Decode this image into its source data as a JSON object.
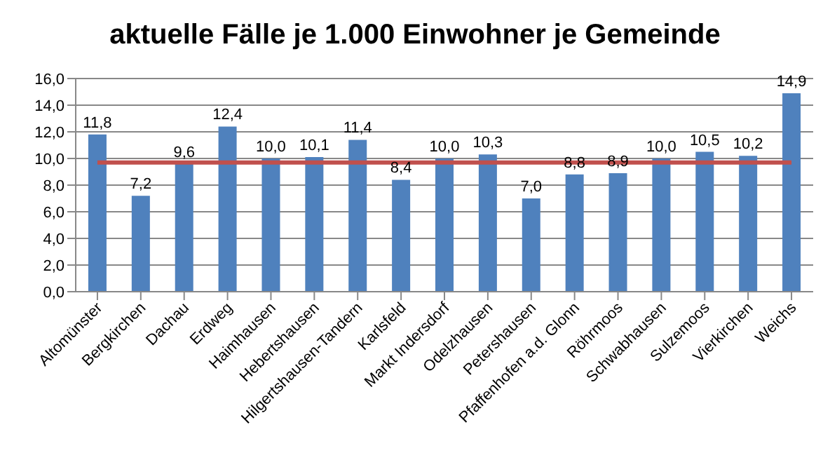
{
  "chart_data": {
    "type": "bar",
    "title": "aktuelle Fälle je 1.000 Einwohner je Gemeinde",
    "categories": [
      "Altomünster",
      "Bergkirchen",
      "Dachau",
      "Erdweg",
      "Haimhausen",
      "Hebertshausen",
      "Hilgertshausen-Tandern",
      "Karlsfeld",
      "Markt Indersdorf",
      "Odelzhausen",
      "Petershausen",
      "Pfaffenhofen a.d. Glonn",
      "Röhrmoos",
      "Schwabhausen",
      "Sulzemoos",
      "Vierkirchen",
      "Weichs"
    ],
    "values": [
      11.8,
      7.2,
      9.6,
      12.4,
      10.0,
      10.1,
      11.4,
      8.4,
      10.0,
      10.3,
      7.0,
      8.8,
      8.9,
      10.0,
      10.5,
      10.2,
      14.9
    ],
    "value_labels": [
      "11,8",
      "7,2",
      "9,6",
      "12,4",
      "10,0",
      "10,1",
      "11,4",
      "8,4",
      "10,0",
      "10,3",
      "7,0",
      "8,8",
      "8,9",
      "10,0",
      "10,5",
      "10,2",
      "14,9"
    ],
    "color": "#4f81bd",
    "ylim": [
      0,
      16
    ],
    "yticks": [
      {
        "value": 0,
        "label": "0,0"
      },
      {
        "value": 2,
        "label": "2,0"
      },
      {
        "value": 4,
        "label": "4,0"
      },
      {
        "value": 6,
        "label": "6,0"
      },
      {
        "value": 8,
        "label": "8,0"
      },
      {
        "value": 10,
        "label": "10,0"
      },
      {
        "value": 12,
        "label": "12,0"
      },
      {
        "value": 14,
        "label": "14,0"
      },
      {
        "value": 16,
        "label": "16,0"
      }
    ],
    "grid": "y",
    "ref_lines": [
      {
        "axis": "y",
        "value": 9.7,
        "color": "#c0504d"
      }
    ]
  }
}
